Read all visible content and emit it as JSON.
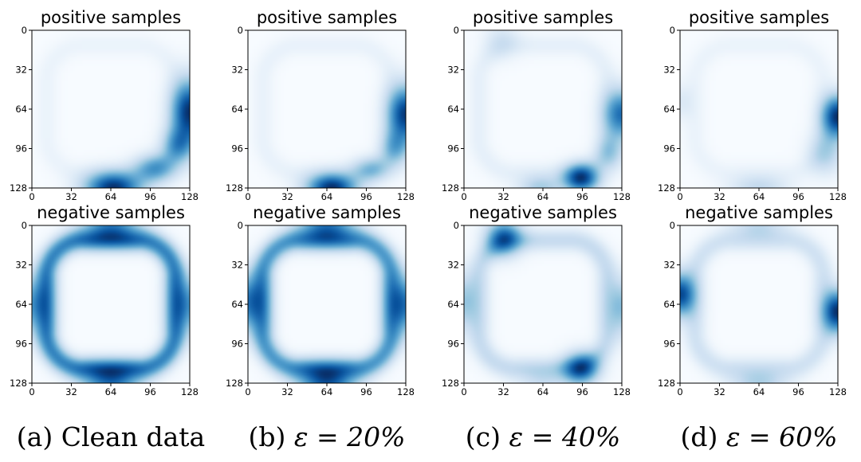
{
  "chart_data": {
    "type": "heatmap",
    "colormap": "Blues",
    "x_ticks": [
      "0",
      "32",
      "64",
      "96",
      "128"
    ],
    "y_ticks": [
      "0",
      "32",
      "64",
      "96",
      "128"
    ],
    "x_range": [
      0,
      128
    ],
    "y_range": [
      0,
      128
    ],
    "columns": [
      {
        "caption_prefix": "(a)",
        "caption_text": "Clean data",
        "caption_math": "",
        "rows": [
          {
            "title": "positive samples",
            "ring_strength": 0.06,
            "blobs": [
              {
                "x": 128,
                "y": 66,
                "sx": 10,
                "sy": 18,
                "w": 1.0
              },
              {
                "x": 66,
                "y": 128,
                "sx": 16,
                "sy": 9,
                "w": 1.0
              },
              {
                "x": 100,
                "y": 112,
                "sx": 12,
                "sy": 8,
                "w": 0.55
              },
              {
                "x": 118,
                "y": 94,
                "sx": 9,
                "sy": 10,
                "w": 0.5
              }
            ]
          },
          {
            "title": "negative samples",
            "ring_strength": 0.62,
            "blobs": [
              {
                "x": 64,
                "y": 0,
                "sx": 16,
                "sy": 9,
                "w": 0.55
              },
              {
                "x": 64,
                "y": 128,
                "sx": 16,
                "sy": 9,
                "w": 0.6
              },
              {
                "x": 0,
                "y": 64,
                "sx": 8,
                "sy": 16,
                "w": 0.45
              },
              {
                "x": 128,
                "y": 64,
                "sx": 8,
                "sy": 16,
                "w": 0.45
              }
            ]
          }
        ]
      },
      {
        "caption_prefix": "(b)",
        "caption_text": "",
        "caption_math": "ε = 20%",
        "rows": [
          {
            "title": "positive samples",
            "ring_strength": 0.07,
            "blobs": [
              {
                "x": 128,
                "y": 68,
                "sx": 10,
                "sy": 16,
                "w": 0.95
              },
              {
                "x": 68,
                "y": 128,
                "sx": 14,
                "sy": 8,
                "w": 1.0
              },
              {
                "x": 100,
                "y": 113,
                "sx": 11,
                "sy": 7,
                "w": 0.4
              },
              {
                "x": 119,
                "y": 96,
                "sx": 8,
                "sy": 10,
                "w": 0.4
              }
            ]
          },
          {
            "title": "negative samples",
            "ring_strength": 0.5,
            "blobs": [
              {
                "x": 64,
                "y": 0,
                "sx": 16,
                "sy": 9,
                "w": 0.55
              },
              {
                "x": 64,
                "y": 128,
                "sx": 16,
                "sy": 9,
                "w": 0.65
              },
              {
                "x": 0,
                "y": 62,
                "sx": 8,
                "sy": 16,
                "w": 0.55
              },
              {
                "x": 128,
                "y": 64,
                "sx": 8,
                "sy": 16,
                "w": 0.55
              }
            ]
          }
        ]
      },
      {
        "caption_prefix": "(c)",
        "caption_text": "",
        "caption_math": "ε = 40%",
        "rows": [
          {
            "title": "positive samples",
            "ring_strength": 0.09,
            "blobs": [
              {
                "x": 128,
                "y": 68,
                "sx": 10,
                "sy": 14,
                "w": 0.8
              },
              {
                "x": 95,
                "y": 120,
                "sx": 10,
                "sy": 8,
                "w": 1.0
              },
              {
                "x": 62,
                "y": 128,
                "sx": 12,
                "sy": 7,
                "w": 0.35
              },
              {
                "x": 30,
                "y": 8,
                "sx": 10,
                "sy": 10,
                "w": 0.18
              },
              {
                "x": 118,
                "y": 100,
                "sx": 8,
                "sy": 10,
                "w": 0.35
              }
            ]
          },
          {
            "title": "negative samples",
            "ring_strength": 0.32,
            "blobs": [
              {
                "x": 32,
                "y": 10,
                "sx": 10,
                "sy": 10,
                "w": 0.95
              },
              {
                "x": 95,
                "y": 116,
                "sx": 10,
                "sy": 9,
                "w": 1.0
              },
              {
                "x": 0,
                "y": 62,
                "sx": 7,
                "sy": 16,
                "w": 0.45
              },
              {
                "x": 128,
                "y": 66,
                "sx": 7,
                "sy": 16,
                "w": 0.5
              },
              {
                "x": 64,
                "y": 128,
                "sx": 14,
                "sy": 8,
                "w": 0.25
              }
            ]
          }
        ]
      },
      {
        "caption_prefix": "(d)",
        "caption_text": "",
        "caption_math": "ε = 60%",
        "rows": [
          {
            "title": "positive samples",
            "ring_strength": 0.06,
            "blobs": [
              {
                "x": 128,
                "y": 70,
                "sx": 9,
                "sy": 12,
                "w": 1.0
              },
              {
                "x": 64,
                "y": 128,
                "sx": 16,
                "sy": 7,
                "w": 0.25
              },
              {
                "x": 2,
                "y": 58,
                "sx": 6,
                "sy": 10,
                "w": 0.12
              },
              {
                "x": 118,
                "y": 100,
                "sx": 10,
                "sy": 12,
                "w": 0.3
              }
            ]
          },
          {
            "title": "negative samples",
            "ring_strength": 0.2,
            "blobs": [
              {
                "x": 0,
                "y": 56,
                "sx": 8,
                "sy": 12,
                "w": 0.9
              },
              {
                "x": 128,
                "y": 70,
                "sx": 8,
                "sy": 12,
                "w": 1.0
              },
              {
                "x": 64,
                "y": 0,
                "sx": 16,
                "sy": 7,
                "w": 0.25
              },
              {
                "x": 64,
                "y": 128,
                "sx": 16,
                "sy": 7,
                "w": 0.3
              }
            ]
          }
        ]
      }
    ]
  }
}
